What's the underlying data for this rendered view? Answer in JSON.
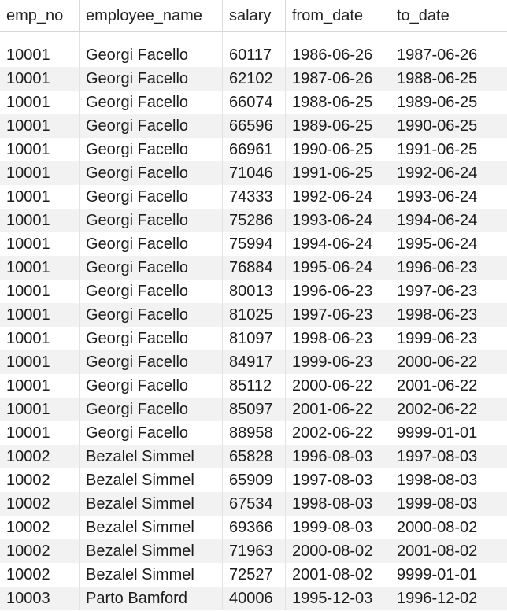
{
  "table": {
    "columns": [
      "emp_no",
      "employee_name",
      "salary",
      "from_date",
      "to_date"
    ],
    "rows": [
      [
        "10001",
        "Georgi Facello",
        "60117",
        "1986-06-26",
        "1987-06-26"
      ],
      [
        "10001",
        "Georgi Facello",
        "62102",
        "1987-06-26",
        "1988-06-25"
      ],
      [
        "10001",
        "Georgi Facello",
        "66074",
        "1988-06-25",
        "1989-06-25"
      ],
      [
        "10001",
        "Georgi Facello",
        "66596",
        "1989-06-25",
        "1990-06-25"
      ],
      [
        "10001",
        "Georgi Facello",
        "66961",
        "1990-06-25",
        "1991-06-25"
      ],
      [
        "10001",
        "Georgi Facello",
        "71046",
        "1991-06-25",
        "1992-06-24"
      ],
      [
        "10001",
        "Georgi Facello",
        "74333",
        "1992-06-24",
        "1993-06-24"
      ],
      [
        "10001",
        "Georgi Facello",
        "75286",
        "1993-06-24",
        "1994-06-24"
      ],
      [
        "10001",
        "Georgi Facello",
        "75994",
        "1994-06-24",
        "1995-06-24"
      ],
      [
        "10001",
        "Georgi Facello",
        "76884",
        "1995-06-24",
        "1996-06-23"
      ],
      [
        "10001",
        "Georgi Facello",
        "80013",
        "1996-06-23",
        "1997-06-23"
      ],
      [
        "10001",
        "Georgi Facello",
        "81025",
        "1997-06-23",
        "1998-06-23"
      ],
      [
        "10001",
        "Georgi Facello",
        "81097",
        "1998-06-23",
        "1999-06-23"
      ],
      [
        "10001",
        "Georgi Facello",
        "84917",
        "1999-06-23",
        "2000-06-22"
      ],
      [
        "10001",
        "Georgi Facello",
        "85112",
        "2000-06-22",
        "2001-06-22"
      ],
      [
        "10001",
        "Georgi Facello",
        "85097",
        "2001-06-22",
        "2002-06-22"
      ],
      [
        "10001",
        "Georgi Facello",
        "88958",
        "2002-06-22",
        "9999-01-01"
      ],
      [
        "10002",
        "Bezalel Simmel",
        "65828",
        "1996-08-03",
        "1997-08-03"
      ],
      [
        "10002",
        "Bezalel Simmel",
        "65909",
        "1997-08-03",
        "1998-08-03"
      ],
      [
        "10002",
        "Bezalel Simmel",
        "67534",
        "1998-08-03",
        "1999-08-03"
      ],
      [
        "10002",
        "Bezalel Simmel",
        "69366",
        "1999-08-03",
        "2000-08-02"
      ],
      [
        "10002",
        "Bezalel Simmel",
        "71963",
        "2000-08-02",
        "2001-08-02"
      ],
      [
        "10002",
        "Bezalel Simmel",
        "72527",
        "2001-08-02",
        "9999-01-01"
      ],
      [
        "10003",
        "Parto Bamford",
        "40006",
        "1995-12-03",
        "1996-12-02"
      ]
    ]
  }
}
